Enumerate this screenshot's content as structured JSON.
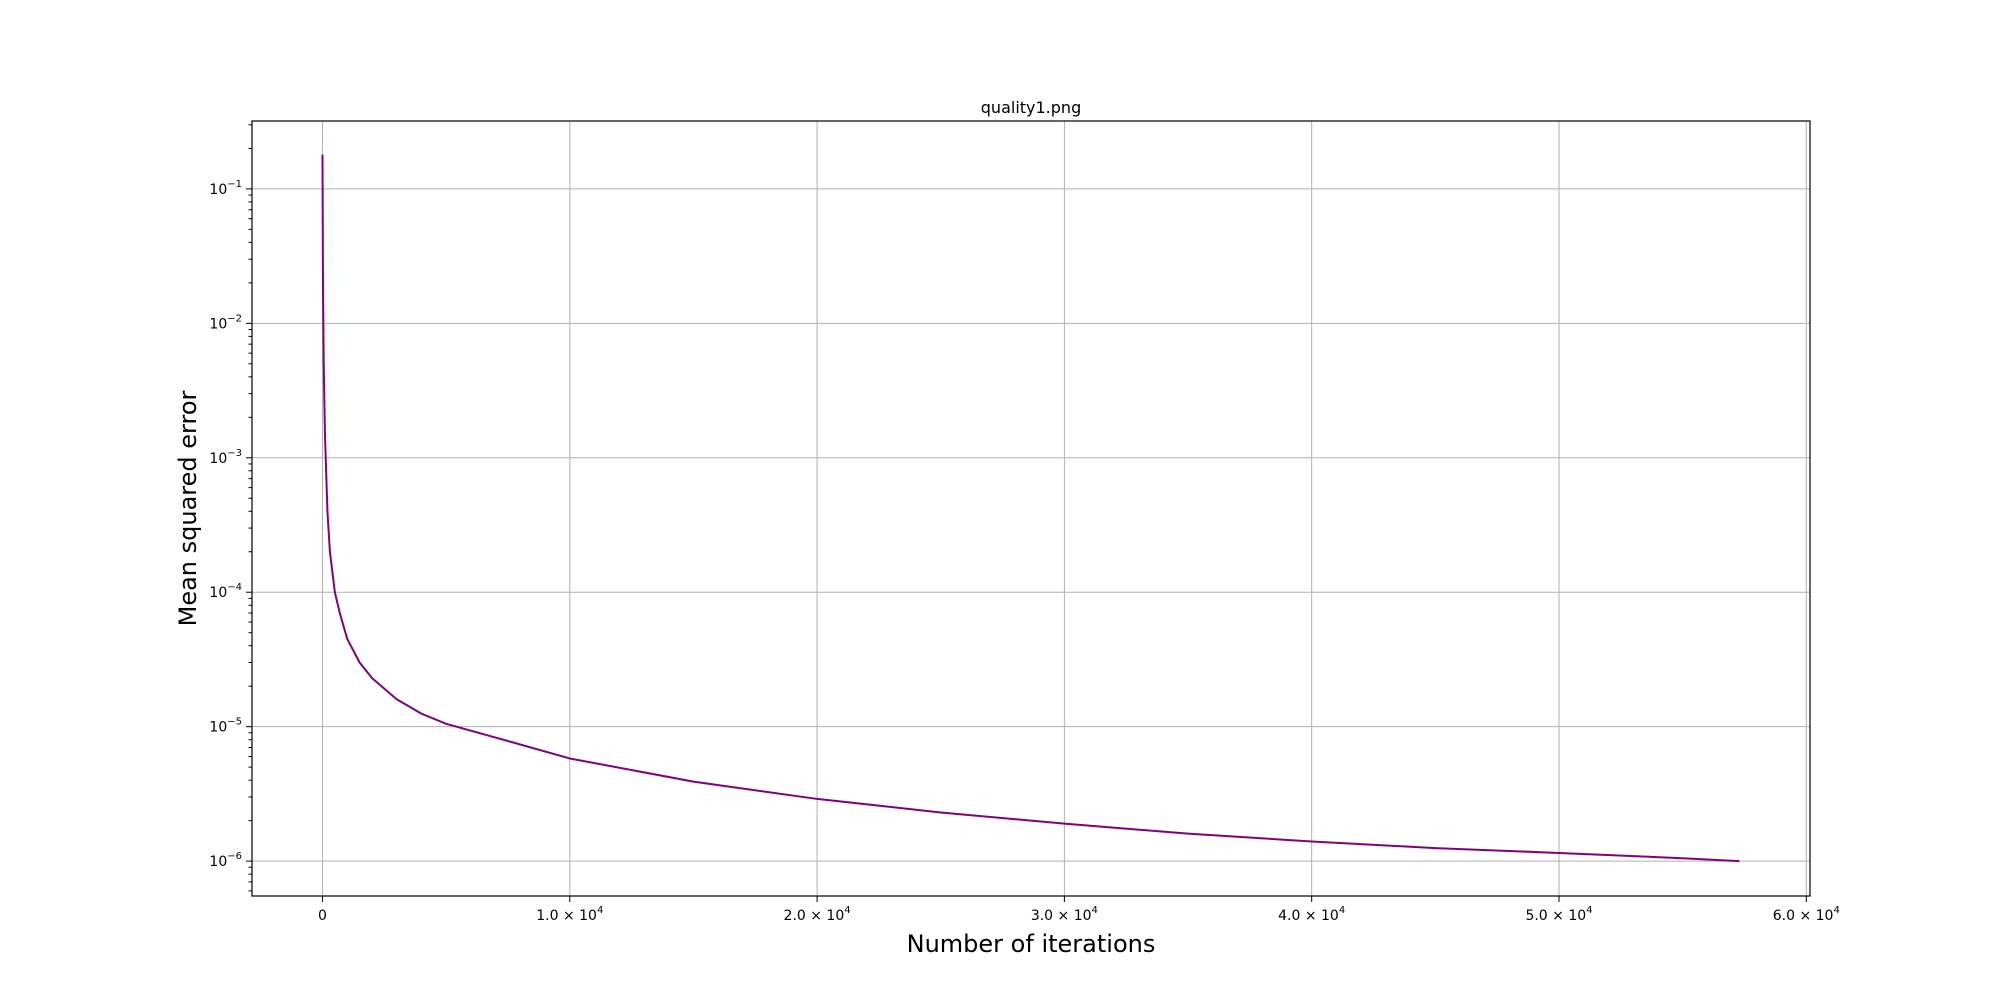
{
  "chart_data": {
    "type": "line",
    "title": "quality1.png",
    "xlabel": "Number of iterations",
    "ylabel": "Mean squared error",
    "xscale": "linear",
    "yscale": "log",
    "xlim": [
      -2850,
      60150
    ],
    "ylim": [
      5.5e-07,
      0.32
    ],
    "grid": true,
    "x_ticks": [
      {
        "value": 0,
        "mantissa": "0",
        "exp": ""
      },
      {
        "value": 10000,
        "mantissa": "1.0 × 10",
        "exp": "4"
      },
      {
        "value": 20000,
        "mantissa": "2.0 × 10",
        "exp": "4"
      },
      {
        "value": 30000,
        "mantissa": "3.0 × 10",
        "exp": "4"
      },
      {
        "value": 40000,
        "mantissa": "4.0 × 10",
        "exp": "4"
      },
      {
        "value": 50000,
        "mantissa": "5.0 × 10",
        "exp": "4"
      },
      {
        "value": 60000,
        "mantissa": "6.0 × 10",
        "exp": "4"
      }
    ],
    "y_ticks": [
      {
        "value": 0.1,
        "mantissa": "10",
        "exp": "−1"
      },
      {
        "value": 0.01,
        "mantissa": "10",
        "exp": "−2"
      },
      {
        "value": 0.001,
        "mantissa": "10",
        "exp": "−3"
      },
      {
        "value": 0.0001,
        "mantissa": "10",
        "exp": "−4"
      },
      {
        "value": 1e-05,
        "mantissa": "10",
        "exp": "−5"
      },
      {
        "value": 1e-06,
        "mantissa": "10",
        "exp": "−6"
      }
    ],
    "series": [
      {
        "color": "#800080",
        "x": [
          0,
          20,
          50,
          100,
          200,
          300,
          500,
          700,
          1000,
          1500,
          2000,
          3000,
          4000,
          5000,
          7000,
          10000,
          15000,
          20000,
          25000,
          30000,
          35000,
          40000,
          45000,
          50000,
          55000,
          57300
        ],
        "y": [
          0.18,
          0.02,
          0.005,
          0.0015,
          0.0004,
          0.0002,
          0.0001,
          7e-05,
          4.5e-05,
          3e-05,
          2.3e-05,
          1.6e-05,
          1.25e-05,
          1.05e-05,
          8.3e-06,
          5.8e-06,
          3.9e-06,
          2.9e-06,
          2.3e-06,
          1.9e-06,
          1.6e-06,
          1.4e-06,
          1.25e-06,
          1.15e-06,
          1.05e-06,
          1e-06
        ]
      }
    ]
  }
}
